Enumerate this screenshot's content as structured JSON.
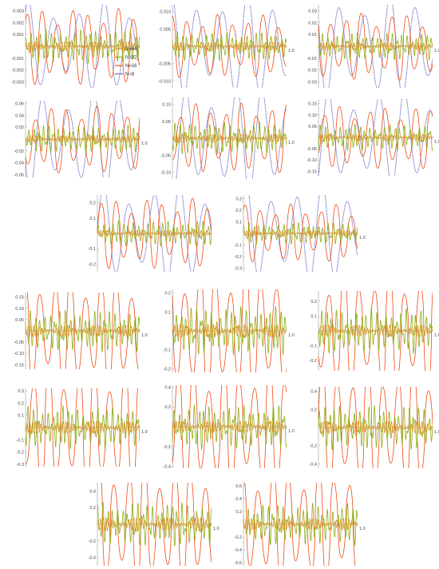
{
  "colors": {
    "N8": "#6b6bc7",
    "N16": "#ee4b16",
    "N32": "#8fae14",
    "N64": "#d99a2b",
    "axis": "#9a9a9a",
    "tick_text": "#444444"
  },
  "legend": {
    "placement": "inside-right-of-first-panel",
    "entries": [
      "N=64",
      "N=32",
      "N=16",
      "N=8"
    ]
  },
  "chart_data": [
    {
      "type": "line",
      "title": "",
      "xlabel": "",
      "ylabel": "",
      "x_ticks": [],
      "y_ticks": [
        "0.003",
        "0.002",
        "0.001",
        "-0.001",
        "-0.002",
        "-0.003"
      ],
      "ylim": [
        -0.0035,
        0.0035
      ],
      "amplitudes": {
        "N8": 0.0035,
        "N16": 0.0028,
        "N32": 0.0012,
        "N64": 0.0004
      },
      "series": [
        {
          "name": "N=64"
        },
        {
          "name": "N=32"
        },
        {
          "name": "N=16"
        },
        {
          "name": "N=8"
        }
      ]
    },
    {
      "type": "line",
      "title": "",
      "xlabel": "",
      "ylabel": "",
      "x_ticks": [
        "1.0"
      ],
      "y_ticks": [
        "0.010",
        "0.005",
        "-0.005",
        "-0.010"
      ],
      "ylim": [
        -0.012,
        0.012
      ],
      "amplitudes": {
        "N8": 0.014,
        "N16": 0.008,
        "N32": 0.0035,
        "N64": 0.0012
      },
      "series": [
        {
          "name": "N=64"
        },
        {
          "name": "N=32"
        },
        {
          "name": "N=16"
        },
        {
          "name": "N=8"
        }
      ]
    },
    {
      "type": "line",
      "title": "",
      "xlabel": "",
      "ylabel": "",
      "x_ticks": [
        "1.0"
      ],
      "y_ticks": [
        "0.03",
        "0.02",
        "0.01",
        "-0.01",
        "-0.02",
        "-0.03"
      ],
      "ylim": [
        -0.035,
        0.035
      ],
      "amplitudes": {
        "N8": 0.04,
        "N16": 0.025,
        "N32": 0.01,
        "N64": 0.003
      },
      "series": [
        {
          "name": "N=64"
        },
        {
          "name": "N=32"
        },
        {
          "name": "N=16"
        },
        {
          "name": "N=8"
        }
      ]
    },
    {
      "type": "line",
      "title": "",
      "xlabel": "",
      "ylabel": "",
      "x_ticks": [
        "1.0"
      ],
      "y_ticks": [
        "0.06",
        "0.04",
        "0.02",
        "-0.02",
        "-0.04",
        "-0.06"
      ],
      "ylim": [
        -0.065,
        0.065
      ],
      "amplitudes": {
        "N8": 0.08,
        "N16": 0.05,
        "N32": 0.02,
        "N64": 0.006
      },
      "series": [
        {
          "name": "N=64"
        },
        {
          "name": "N=32"
        },
        {
          "name": "N=16"
        },
        {
          "name": "N=8"
        }
      ]
    },
    {
      "type": "line",
      "title": "",
      "xlabel": "",
      "ylabel": "",
      "x_ticks": [
        "1.0"
      ],
      "y_ticks": [
        "0.10",
        "0.05",
        "-0.05",
        "-0.10"
      ],
      "ylim": [
        -0.12,
        0.12
      ],
      "amplitudes": {
        "N8": 0.15,
        "N16": 0.09,
        "N32": 0.04,
        "N64": 0.012
      },
      "series": [
        {
          "name": "N=64"
        },
        {
          "name": "N=32"
        },
        {
          "name": "N=16"
        },
        {
          "name": "N=8"
        }
      ]
    },
    {
      "type": "line",
      "title": "",
      "xlabel": "",
      "ylabel": "",
      "x_ticks": [
        "1.0"
      ],
      "y_ticks": [
        "0.15",
        "0.10",
        "0.05",
        "-0.05",
        "-0.10",
        "-0.15"
      ],
      "ylim": [
        -0.17,
        0.17
      ],
      "amplitudes": {
        "N8": 0.2,
        "N16": 0.12,
        "N32": 0.05,
        "N64": 0.015
      },
      "series": [
        {
          "name": "N=64"
        },
        {
          "name": "N=32"
        },
        {
          "name": "N=16"
        },
        {
          "name": "N=8"
        }
      ]
    },
    {
      "type": "line",
      "title": "",
      "xlabel": "",
      "ylabel": "",
      "x_ticks": [],
      "y_ticks": [
        "0.2",
        "0.1",
        "-0.1",
        "-0.2"
      ],
      "ylim": [
        -0.25,
        0.25
      ],
      "amplitudes": {
        "N8": 0.3,
        "N16": 0.2,
        "N32": 0.07,
        "N64": 0.02
      },
      "series": [
        {
          "name": "N=64"
        },
        {
          "name": "N=32"
        },
        {
          "name": "N=16"
        },
        {
          "name": "N=8"
        }
      ]
    },
    {
      "type": "line",
      "title": "",
      "xlabel": "",
      "ylabel": "",
      "x_ticks": [
        "1.0"
      ],
      "y_ticks": [
        "0.3",
        "0.2",
        "0.1",
        "-0.1",
        "-0.2",
        "-0.3"
      ],
      "ylim": [
        -0.33,
        0.33
      ],
      "amplitudes": {
        "N8": 0.4,
        "N16": 0.22,
        "N32": 0.08,
        "N64": 0.025
      },
      "series": [
        {
          "name": "N=64"
        },
        {
          "name": "N=32"
        },
        {
          "name": "N=16"
        },
        {
          "name": "N=8"
        }
      ]
    },
    {
      "type": "line",
      "title": "",
      "xlabel": "",
      "ylabel": "",
      "x_ticks": [
        "1.0"
      ],
      "y_ticks": [
        "0.15",
        "0.10",
        "0.05",
        "-0.05",
        "-0.10",
        "-0.15"
      ],
      "ylim": [
        -0.17,
        0.17
      ],
      "amplitudes": {
        "N16": 0.22,
        "N32": 0.08,
        "N64": 0.025
      },
      "series": [
        {
          "name": "N=64"
        },
        {
          "name": "N=32"
        },
        {
          "name": "N=16"
        }
      ]
    },
    {
      "type": "line",
      "title": "",
      "xlabel": "",
      "ylabel": "",
      "x_ticks": [
        "1.0"
      ],
      "y_ticks": [
        "0.2",
        "0.1",
        "-0.1",
        "-0.2"
      ],
      "ylim": [
        -0.22,
        0.22
      ],
      "amplitudes": {
        "N16": 0.3,
        "N32": 0.11,
        "N64": 0.035
      },
      "series": [
        {
          "name": "N=64"
        },
        {
          "name": "N=32"
        },
        {
          "name": "N=16"
        }
      ]
    },
    {
      "type": "line",
      "title": "",
      "xlabel": "",
      "ylabel": "",
      "x_ticks": [
        "1.0"
      ],
      "y_ticks": [
        "0.2",
        "0.1",
        "-0.1",
        "-0.2"
      ],
      "ylim": [
        -0.27,
        0.27
      ],
      "amplitudes": {
        "N16": 0.35,
        "N32": 0.13,
        "N64": 0.04
      },
      "series": [
        {
          "name": "N=64"
        },
        {
          "name": "N=32"
        },
        {
          "name": "N=16"
        }
      ]
    },
    {
      "type": "line",
      "title": "",
      "xlabel": "",
      "ylabel": "",
      "x_ticks": [
        "1.0"
      ],
      "y_ticks": [
        "0.3",
        "0.2",
        "0.1",
        "-0.1",
        "-0.2",
        "-0.3"
      ],
      "ylim": [
        -0.32,
        0.32
      ],
      "amplitudes": {
        "N16": 0.45,
        "N32": 0.15,
        "N64": 0.05
      },
      "series": [
        {
          "name": "N=64"
        },
        {
          "name": "N=32"
        },
        {
          "name": "N=16"
        }
      ]
    },
    {
      "type": "line",
      "title": "",
      "xlabel": "",
      "ylabel": "",
      "x_ticks": [
        "1.0"
      ],
      "y_ticks": [
        "0.4",
        "0.2",
        "-0.2",
        "-0.4"
      ],
      "ylim": [
        -0.42,
        0.42
      ],
      "amplitudes": {
        "N16": 0.55,
        "N32": 0.19,
        "N64": 0.06
      },
      "series": [
        {
          "name": "N=64"
        },
        {
          "name": "N=32"
        },
        {
          "name": "N=16"
        }
      ]
    },
    {
      "type": "line",
      "title": "",
      "xlabel": "",
      "ylabel": "",
      "x_ticks": [
        "1.0"
      ],
      "y_ticks": [
        "0.4",
        "0.2",
        "-0.2",
        "-0.4"
      ],
      "ylim": [
        -0.45,
        0.45
      ],
      "amplitudes": {
        "N16": 0.6,
        "N32": 0.21,
        "N64": 0.07
      },
      "series": [
        {
          "name": "N=64"
        },
        {
          "name": "N=32"
        },
        {
          "name": "N=16"
        }
      ]
    },
    {
      "type": "line",
      "title": "",
      "xlabel": "",
      "ylabel": "",
      "x_ticks": [
        "1.0"
      ],
      "y_ticks": [
        "0.4",
        "0.2",
        "-0.2",
        "-0.4"
      ],
      "ylim": [
        -0.5,
        0.5
      ],
      "amplitudes": {
        "N16": 0.65,
        "N32": 0.23,
        "N64": 0.08
      },
      "series": [
        {
          "name": "N=64"
        },
        {
          "name": "N=32"
        },
        {
          "name": "N=16"
        }
      ]
    },
    {
      "type": "line",
      "title": "",
      "xlabel": "",
      "ylabel": "",
      "x_ticks": [
        "1.0"
      ],
      "y_ticks": [
        "0.6",
        "0.4",
        "0.2",
        "-0.2",
        "-0.4",
        "-0.6"
      ],
      "ylim": [
        -0.65,
        0.65
      ],
      "amplitudes": {
        "N16": 0.8,
        "N32": 0.28,
        "N64": 0.09
      },
      "series": [
        {
          "name": "N=64"
        },
        {
          "name": "N=32"
        },
        {
          "name": "N=16"
        }
      ]
    }
  ]
}
